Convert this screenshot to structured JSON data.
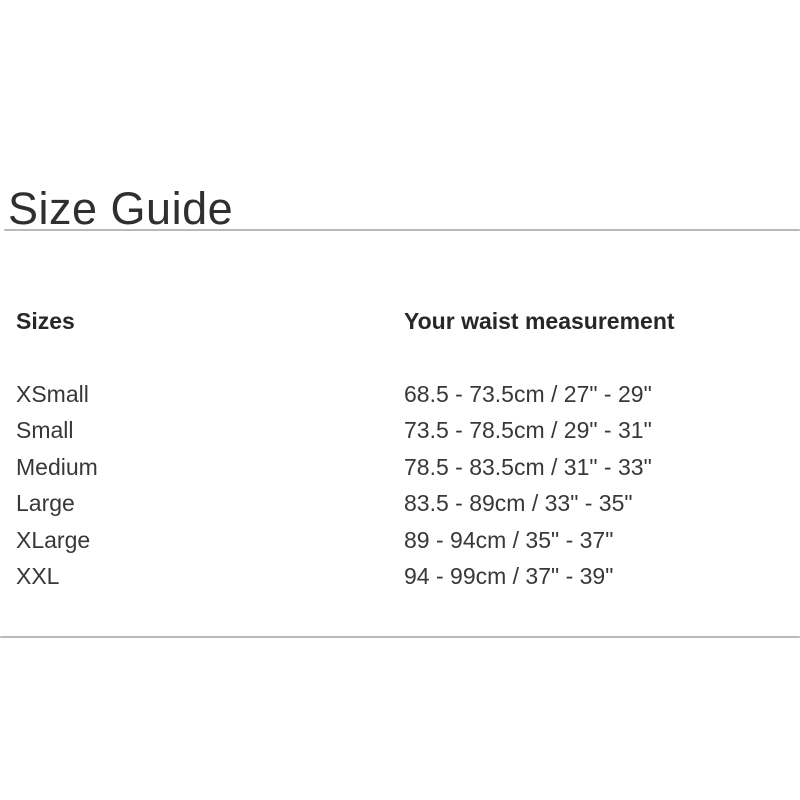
{
  "page": {
    "title": "Size Guide"
  },
  "table": {
    "headers": {
      "sizes": "Sizes",
      "measurement": "Your waist measurement"
    },
    "rows": [
      {
        "size": "XSmall",
        "measurement": "68.5 - 73.5cm / 27\" - 29\""
      },
      {
        "size": "Small",
        "measurement": "73.5 - 78.5cm / 29\" - 31\""
      },
      {
        "size": "Medium",
        "measurement": "78.5 - 83.5cm / 31\" - 33\""
      },
      {
        "size": "Large",
        "measurement": "83.5 - 89cm / 33\" - 35\""
      },
      {
        "size": "XLarge",
        "measurement": "89 - 94cm / 35\" - 37\""
      },
      {
        "size": "XXL",
        "measurement": "94 - 99cm / 37\" - 39\""
      }
    ]
  },
  "colors": {
    "background": "#ffffff",
    "title_text": "#2f2f2f",
    "header_text": "#272727",
    "body_text": "#383838",
    "divider": "#b9b9b9"
  }
}
